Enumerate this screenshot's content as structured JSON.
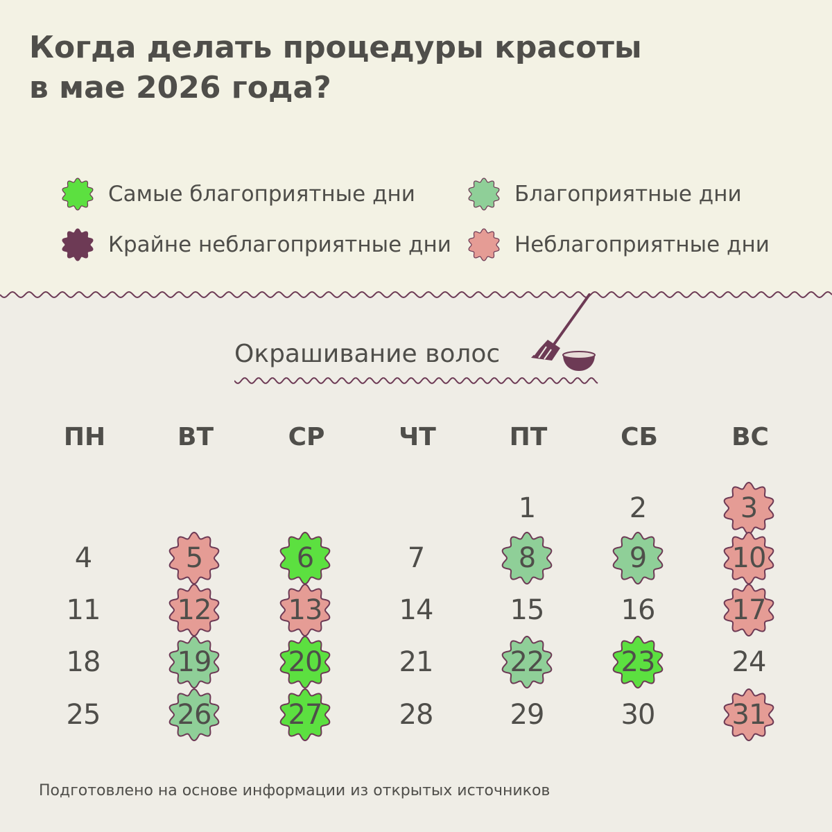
{
  "title": {
    "line1": "Когда делать процедуры красоты",
    "line2": "в мае 2026 года?"
  },
  "legend": [
    {
      "label": "Самые благоприятные дни",
      "category": "best",
      "color": "#5ce040"
    },
    {
      "label": "Благоприятные дни",
      "category": "good",
      "color": "#8fcf98"
    },
    {
      "label": "Крайне неблагоприятные дни",
      "category": "worst",
      "color": "#6d3a55"
    },
    {
      "label": "Неблагоприятные дни",
      "category": "bad",
      "color": "#e59c95"
    }
  ],
  "section_title": "Окрашивание волос",
  "section_icon": "hair-dye-brush-and-bowl-icon",
  "weekdays": [
    "ПН",
    "ВТ",
    "СР",
    "ЧТ",
    "ПТ",
    "СБ",
    "ВС"
  ],
  "calendar": {
    "month": "май",
    "year": 2026,
    "first_weekday_index": 4,
    "days_in_month": 31,
    "marked_days": {
      "3": "bad",
      "5": "bad",
      "6": "best",
      "8": "good",
      "9": "good",
      "10": "bad",
      "12": "bad",
      "13": "bad",
      "17": "bad",
      "19": "good",
      "20": "best",
      "22": "good",
      "23": "best",
      "26": "good",
      "27": "best",
      "31": "bad"
    }
  },
  "colors": {
    "background": "#efede6",
    "top_band": "#f3f2e4",
    "text": "#4f4e4a",
    "outline": "#6d3a55"
  },
  "footer": "Подготовлено на основе информации из открытых источников"
}
